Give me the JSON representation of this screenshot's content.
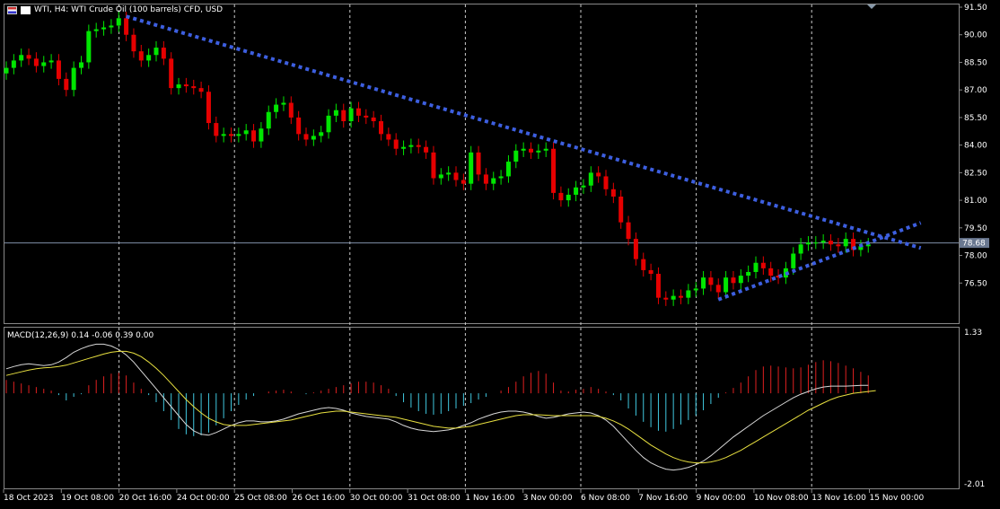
{
  "header": {
    "title": "WTI, H4:  WTI Crude Oil (100 barrels) CFD, USD"
  },
  "macd": {
    "label": "MACD(12,26,9) 0.14 -0.06 0.39 0.00",
    "axis_top": "1.33",
    "axis_bottom": "-2.01"
  },
  "price_marker": "78.68",
  "colors": {
    "bull": "#00e600",
    "bear": "#e60000",
    "trendline": "#3d5fe0",
    "hist_pos": "#e02020",
    "hist_neg": "#40c8e0",
    "macd_line": "#d8d8d8",
    "signal_line": "#e8e040"
  },
  "chart_data": [
    {
      "type": "candlestick",
      "title": "WTI, H4:  WTI Crude Oil (100 barrels) CFD, USD",
      "ylim": [
        75.0,
        91.5
      ],
      "y_ticks": [
        "91.50",
        "90.00",
        "88.50",
        "87.00",
        "85.50",
        "84.00",
        "82.50",
        "81.00",
        "79.50",
        "78.00",
        "76.50"
      ],
      "x_ticks": [
        "18 Oct 2023",
        "19 Oct 08:00",
        "20 Oct 16:00",
        "24 Oct 00:00",
        "25 Oct 08:00",
        "26 Oct 16:00",
        "30 Oct 00:00",
        "31 Oct 08:00",
        "1 Nov 16:00",
        "3 Nov 00:00",
        "6 Nov 08:00",
        "7 Nov 16:00",
        "9 Nov 00:00",
        "10 Nov 08:00",
        "13 Nov 16:00",
        "15 Nov 00:00"
      ],
      "current_price": 78.68,
      "closes": [
        88.2,
        88.6,
        88.9,
        88.7,
        88.3,
        88.5,
        88.6,
        87.6,
        87.0,
        88.2,
        88.5,
        90.2,
        90.3,
        90.4,
        90.5,
        90.9,
        90.0,
        89.1,
        88.6,
        88.9,
        89.3,
        88.7,
        87.1,
        87.3,
        87.2,
        87.1,
        86.9,
        85.2,
        84.5,
        84.6,
        84.5,
        84.6,
        84.8,
        84.2,
        84.9,
        85.8,
        86.2,
        86.3,
        85.5,
        84.6,
        84.3,
        84.5,
        84.7,
        85.6,
        85.9,
        85.3,
        86.0,
        85.6,
        85.5,
        85.3,
        84.6,
        84.3,
        83.8,
        83.9,
        84.0,
        83.9,
        83.6,
        82.2,
        82.4,
        82.5,
        82.1,
        81.9,
        83.6,
        82.4,
        81.9,
        82.2,
        82.3,
        83.1,
        83.7,
        83.8,
        83.6,
        83.7,
        83.8,
        81.4,
        81.0,
        81.3,
        81.7,
        81.8,
        82.5,
        82.3,
        81.6,
        81.2,
        79.8,
        78.9,
        77.8,
        77.2,
        77.0,
        75.7,
        75.6,
        75.8,
        75.7,
        76.1,
        76.2,
        76.8,
        76.4,
        76.0,
        76.8,
        76.5,
        76.9,
        77.1,
        77.6,
        77.3,
        76.9,
        76.8,
        77.3,
        78.1,
        78.6,
        78.7,
        78.7,
        78.8,
        78.6,
        78.5,
        78.9,
        78.3,
        78.5,
        78.6
      ],
      "trendlines": [
        {
          "points": [
            [
              16,
              91.0
            ],
            [
              117,
              79.0
            ]
          ]
        },
        {
          "points": [
            [
              95,
              75.6
            ],
            [
              117,
              79.0
            ]
          ]
        }
      ]
    },
    {
      "type": "macd",
      "title": "MACD(12,26,9) 0.14 -0.06 0.39 0.00",
      "ylim": [
        -2.01,
        1.33
      ],
      "histogram": [
        0.3,
        0.26,
        0.22,
        0.18,
        0.14,
        0.1,
        0.06,
        -0.04,
        -0.16,
        -0.08,
        -0.02,
        0.18,
        0.3,
        0.38,
        0.44,
        0.46,
        0.4,
        0.24,
        0.1,
        -0.04,
        -0.2,
        -0.4,
        -0.6,
        -0.8,
        -0.92,
        -0.96,
        -0.94,
        -0.88,
        -0.72,
        -0.56,
        -0.4,
        -0.26,
        -0.14,
        -0.06,
        0.0,
        0.04,
        0.06,
        0.08,
        0.04,
        0.0,
        -0.02,
        0.02,
        0.06,
        0.1,
        0.14,
        0.18,
        0.22,
        0.26,
        0.26,
        0.24,
        0.18,
        0.1,
        -0.06,
        -0.2,
        -0.32,
        -0.4,
        -0.46,
        -0.48,
        -0.46,
        -0.4,
        -0.34,
        -0.28,
        -0.22,
        -0.14,
        -0.08,
        0.0,
        0.06,
        0.14,
        0.26,
        0.38,
        0.46,
        0.5,
        0.44,
        0.24,
        0.06,
        0.04,
        0.08,
        0.1,
        0.14,
        0.1,
        0.04,
        -0.04,
        -0.16,
        -0.34,
        -0.5,
        -0.64,
        -0.76,
        -0.84,
        -0.86,
        -0.8,
        -0.7,
        -0.6,
        -0.5,
        -0.38,
        -0.24,
        -0.1,
        0.02,
        0.12,
        0.24,
        0.38,
        0.52,
        0.6,
        0.62,
        0.6,
        0.58,
        0.56,
        0.58,
        0.64,
        0.7,
        0.74,
        0.72,
        0.68,
        0.62,
        0.56,
        0.48,
        0.4
      ],
      "macd": [
        0.55,
        0.6,
        0.64,
        0.66,
        0.64,
        0.62,
        0.64,
        0.7,
        0.8,
        0.92,
        1.0,
        1.06,
        1.1,
        1.1,
        1.06,
        0.98,
        0.86,
        0.7,
        0.5,
        0.3,
        0.1,
        -0.1,
        -0.3,
        -0.5,
        -0.7,
        -0.84,
        -0.92,
        -0.94,
        -0.88,
        -0.8,
        -0.72,
        -0.66,
        -0.62,
        -0.62,
        -0.64,
        -0.64,
        -0.62,
        -0.58,
        -0.52,
        -0.46,
        -0.42,
        -0.38,
        -0.34,
        -0.32,
        -0.34,
        -0.38,
        -0.44,
        -0.48,
        -0.52,
        -0.54,
        -0.56,
        -0.58,
        -0.64,
        -0.72,
        -0.78,
        -0.82,
        -0.84,
        -0.86,
        -0.84,
        -0.82,
        -0.78,
        -0.72,
        -0.66,
        -0.58,
        -0.52,
        -0.46,
        -0.42,
        -0.4,
        -0.4,
        -0.42,
        -0.46,
        -0.52,
        -0.56,
        -0.54,
        -0.5,
        -0.46,
        -0.44,
        -0.42,
        -0.44,
        -0.5,
        -0.6,
        -0.74,
        -0.92,
        -1.1,
        -1.28,
        -1.44,
        -1.56,
        -1.64,
        -1.7,
        -1.72,
        -1.7,
        -1.66,
        -1.6,
        -1.52,
        -1.4,
        -1.26,
        -1.12,
        -0.98,
        -0.86,
        -0.74,
        -0.62,
        -0.5,
        -0.4,
        -0.3,
        -0.2,
        -0.1,
        -0.02,
        0.04,
        0.1,
        0.14,
        0.16,
        0.16,
        0.16,
        0.17,
        0.18,
        0.18
      ],
      "signal": [
        0.4,
        0.44,
        0.48,
        0.52,
        0.55,
        0.57,
        0.58,
        0.6,
        0.63,
        0.68,
        0.73,
        0.78,
        0.83,
        0.88,
        0.92,
        0.94,
        0.94,
        0.9,
        0.82,
        0.7,
        0.56,
        0.4,
        0.22,
        0.04,
        -0.14,
        -0.3,
        -0.44,
        -0.56,
        -0.64,
        -0.7,
        -0.72,
        -0.72,
        -0.72,
        -0.7,
        -0.68,
        -0.66,
        -0.64,
        -0.62,
        -0.6,
        -0.56,
        -0.52,
        -0.48,
        -0.44,
        -0.42,
        -0.4,
        -0.4,
        -0.42,
        -0.44,
        -0.46,
        -0.48,
        -0.5,
        -0.52,
        -0.54,
        -0.58,
        -0.62,
        -0.66,
        -0.7,
        -0.74,
        -0.76,
        -0.78,
        -0.78,
        -0.76,
        -0.74,
        -0.7,
        -0.66,
        -0.62,
        -0.58,
        -0.54,
        -0.5,
        -0.48,
        -0.48,
        -0.48,
        -0.49,
        -0.5,
        -0.5,
        -0.5,
        -0.5,
        -0.5,
        -0.5,
        -0.52,
        -0.56,
        -0.62,
        -0.7,
        -0.8,
        -0.92,
        -1.04,
        -1.16,
        -1.26,
        -1.36,
        -1.44,
        -1.5,
        -1.54,
        -1.56,
        -1.56,
        -1.54,
        -1.5,
        -1.44,
        -1.36,
        -1.28,
        -1.18,
        -1.08,
        -0.98,
        -0.88,
        -0.78,
        -0.68,
        -0.58,
        -0.48,
        -0.38,
        -0.3,
        -0.22,
        -0.14,
        -0.08,
        -0.04,
        0.0,
        0.02,
        0.04,
        0.06
      ]
    }
  ]
}
